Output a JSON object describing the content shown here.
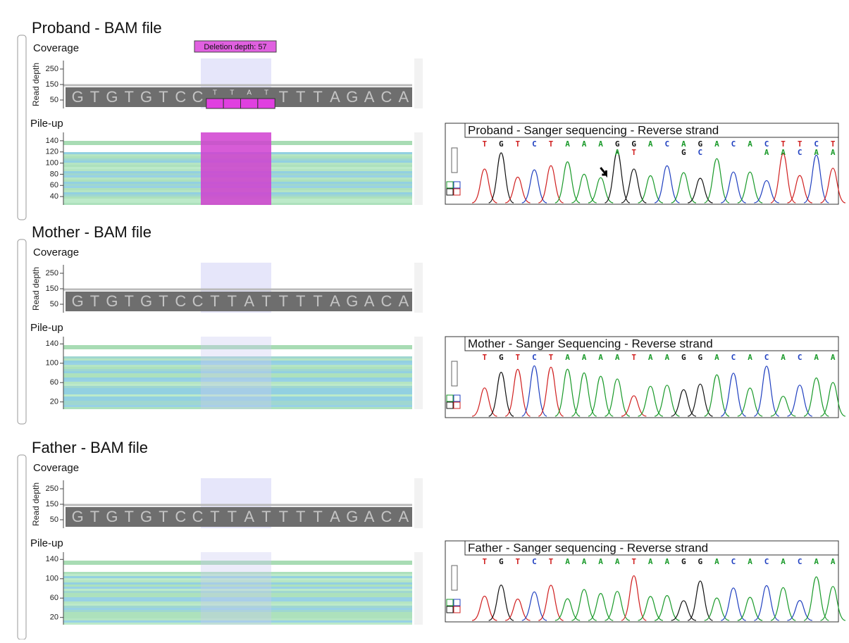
{
  "panels": [
    {
      "title": "Proband - BAM file",
      "coverage_label": "Coverage",
      "y_axis_label": "Read depth",
      "coverage_ticks": [
        250,
        150,
        50
      ],
      "sequence": [
        "G",
        "T",
        "G",
        "T",
        "G",
        "T",
        "C",
        "C",
        "T",
        "T",
        "A",
        "T",
        "T",
        "T",
        "T",
        "A",
        "G",
        "A",
        "C",
        "A"
      ],
      "deletion_label": "Deletion depth: 57",
      "pileup_label": "Pile-up",
      "pileup_ticks": [
        140,
        120,
        100,
        80,
        60,
        40
      ],
      "sanger": {
        "title": "Proband - Sanger sequencing - Reverse strand",
        "calls": [
          "T",
          "G",
          "T",
          "C",
          "T",
          "A",
          "A",
          "A",
          "G",
          "G",
          "A",
          "C",
          "A",
          "G",
          "A",
          "C",
          "A",
          "C",
          "T",
          "T",
          "C",
          "T"
        ],
        "secondary_calls": [
          "A",
          "T",
          "G",
          "C",
          "A",
          "A",
          "C",
          "A",
          "A"
        ]
      }
    },
    {
      "title": "Mother - BAM file",
      "coverage_label": "Coverage",
      "y_axis_label": "Read depth",
      "coverage_ticks": [
        250,
        150,
        50
      ],
      "sequence": [
        "G",
        "T",
        "G",
        "T",
        "G",
        "T",
        "C",
        "C",
        "T",
        "T",
        "A",
        "T",
        "T",
        "T",
        "T",
        "A",
        "G",
        "A",
        "C",
        "A"
      ],
      "pileup_label": "Pile-up",
      "pileup_ticks": [
        140,
        100,
        60,
        20
      ],
      "sanger": {
        "title": "Mother - Sanger Sequencing - Reverse strand",
        "calls": [
          "T",
          "G",
          "T",
          "C",
          "T",
          "A",
          "A",
          "A",
          "A",
          "T",
          "A",
          "A",
          "G",
          "G",
          "A",
          "C",
          "A",
          "C",
          "A",
          "C",
          "A",
          "A"
        ]
      }
    },
    {
      "title": "Father - BAM file",
      "coverage_label": "Coverage",
      "y_axis_label": "Read depth",
      "coverage_ticks": [
        250,
        150,
        50
      ],
      "sequence": [
        "G",
        "T",
        "G",
        "T",
        "G",
        "T",
        "C",
        "C",
        "T",
        "T",
        "A",
        "T",
        "T",
        "T",
        "T",
        "A",
        "G",
        "A",
        "C",
        "A"
      ],
      "pileup_label": "Pile-up",
      "pileup_ticks": [
        140,
        100,
        60,
        20
      ],
      "sanger": {
        "title": "Father - Sanger sequencing - Reverse strand",
        "calls": [
          "T",
          "G",
          "T",
          "C",
          "T",
          "A",
          "A",
          "A",
          "A",
          "T",
          "A",
          "A",
          "G",
          "G",
          "A",
          "C",
          "A",
          "C",
          "A",
          "C",
          "A",
          "A"
        ]
      }
    }
  ]
}
